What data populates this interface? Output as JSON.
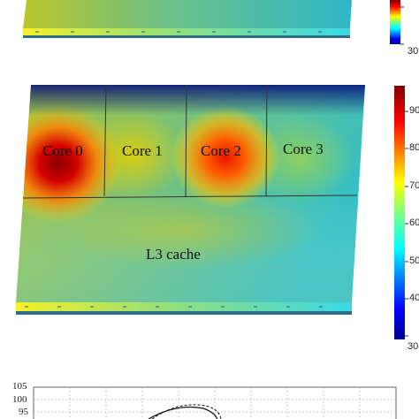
{
  "heatmap_top": {
    "colorbar_ticks": [
      "30"
    ]
  },
  "heatmap_main": {
    "blocks": [
      {
        "label": "Core 0"
      },
      {
        "label": "Core 1"
      },
      {
        "label": "Core 2"
      },
      {
        "label": "Core 3"
      },
      {
        "label": "L3 cache"
      }
    ],
    "colorbar_ticks": [
      "90",
      "80",
      "70",
      "60",
      "50",
      "40",
      "30"
    ],
    "colormap": [
      "#00008f",
      "#0000ff",
      "#0080ff",
      "#00ffff",
      "#80ff80",
      "#ffff00",
      "#ff8000",
      "#ff0000",
      "#800000"
    ]
  },
  "line_plot": {
    "y_ticks": [
      "105",
      "100",
      "95"
    ]
  }
}
